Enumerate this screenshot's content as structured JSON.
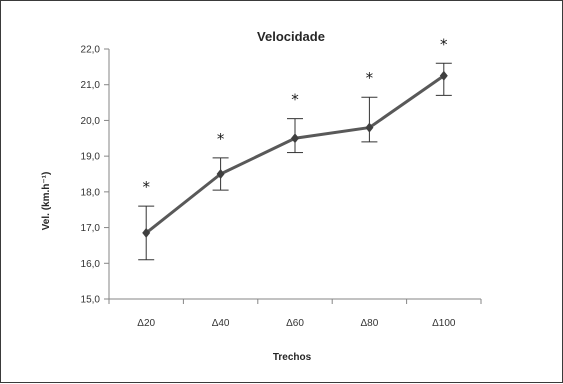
{
  "chart_data": {
    "type": "line",
    "title": "Velocidade",
    "xlabel": "Trechos",
    "ylabel": "Vel. (km.h⁻¹)",
    "categories": [
      "Δ20",
      "Δ40",
      "Δ60",
      "Δ80",
      "Δ100"
    ],
    "series": [
      {
        "values": [
          16.85,
          18.5,
          19.5,
          19.8,
          21.25
        ],
        "error_low": [
          16.1,
          18.05,
          19.1,
          19.4,
          20.7
        ],
        "error_high": [
          17.6,
          18.95,
          20.05,
          20.65,
          21.6
        ],
        "color": "#595959"
      }
    ],
    "annotations": [
      "*",
      "*",
      "*",
      "*",
      "*"
    ],
    "ylim": [
      15.0,
      22.0
    ],
    "yticks": [
      15.0,
      16.0,
      17.0,
      18.0,
      19.0,
      20.0,
      21.0,
      22.0
    ],
    "ytick_labels": [
      "15,0",
      "16,0",
      "17,0",
      "18,0",
      "19,0",
      "20,0",
      "21,0",
      "22,0"
    ],
    "grid": false,
    "legend": "none"
  }
}
